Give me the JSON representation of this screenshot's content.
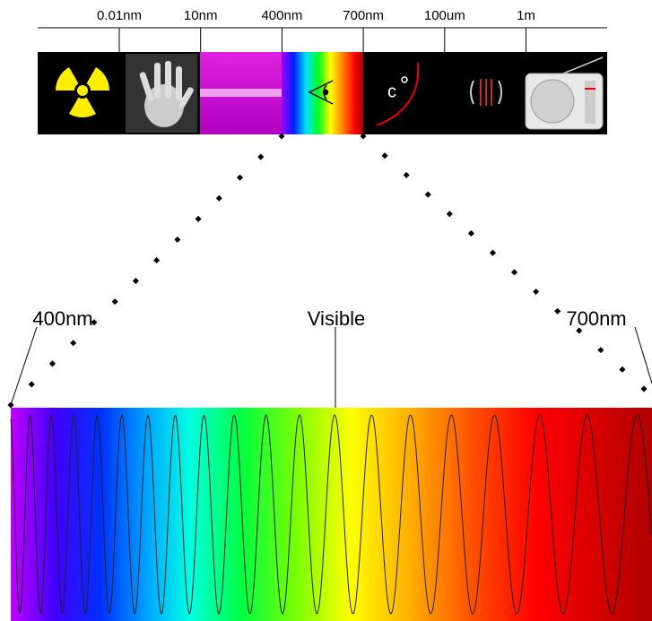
{
  "scale": {
    "ticks": [
      "0.01nm",
      "10nm",
      "400nm",
      "700nm",
      "100um",
      "1m"
    ]
  },
  "visible": {
    "start_label": "400nm",
    "title": "Visible",
    "end_label": "700nm"
  }
}
